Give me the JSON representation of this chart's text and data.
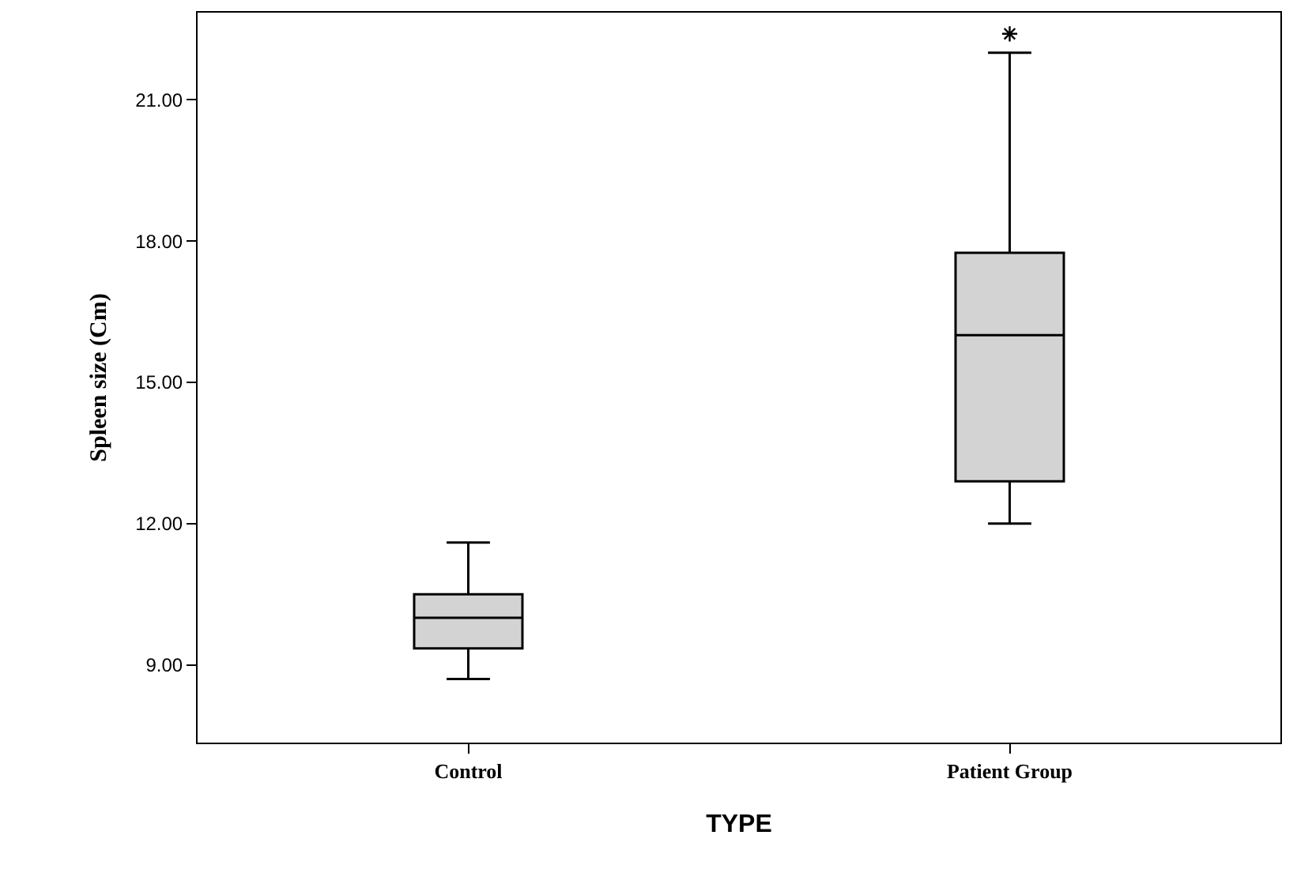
{
  "chart_data": {
    "type": "box",
    "xlabel": "TYPE",
    "ylabel": "Spleen size (Cm)",
    "categories": [
      "Control",
      "Patient Group"
    ],
    "boxes": [
      {
        "low": 8.7,
        "q1": 9.35,
        "median": 10.0,
        "q3": 10.5,
        "high": 11.6
      },
      {
        "low": 12.0,
        "q1": 12.9,
        "median": 16.0,
        "q3": 17.75,
        "high": 22.0,
        "outliers": [
          22.4
        ]
      }
    ],
    "color": "#d3d3d3",
    "ylim": [
      7.35,
      22.85
    ],
    "yticks": [
      {
        "value": 9,
        "label": "9.00"
      },
      {
        "value": 12,
        "label": "12.00"
      },
      {
        "value": 15,
        "label": "15.00"
      },
      {
        "value": 18,
        "label": "18.00"
      },
      {
        "value": 21,
        "label": "21.00"
      }
    ]
  }
}
